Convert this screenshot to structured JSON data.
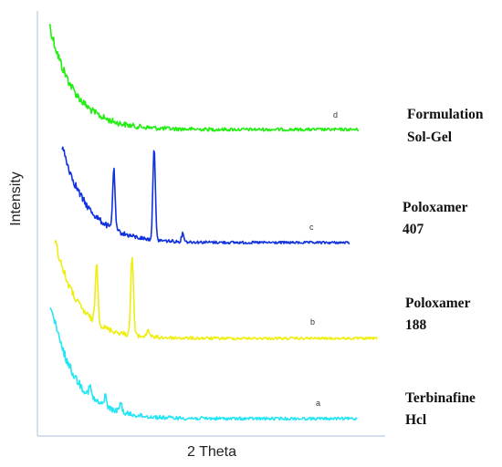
{
  "chart_data": {
    "type": "line",
    "title": "",
    "xlabel": "2 Theta",
    "ylabel": "Intensity",
    "grid": false,
    "axis_ticks": false,
    "series": [
      {
        "id": "d",
        "trace_label": "d",
        "legend_lines": [
          "Formulation",
          "Sol-Gel"
        ],
        "color": "#22ee11",
        "shape": "amorphous-halo",
        "peaks": []
      },
      {
        "id": "c",
        "trace_label": "c",
        "legend_lines": [
          "Poloxamer",
          "407"
        ],
        "color": "#1133dd",
        "shape": "crystalline",
        "peaks": [
          {
            "position": 0.18,
            "height": 1.0
          },
          {
            "position": 0.32,
            "height": 1.55
          },
          {
            "position": 0.42,
            "height": 0.14
          }
        ]
      },
      {
        "id": "b",
        "trace_label": "b",
        "legend_lines": [
          "Poloxamer",
          "188"
        ],
        "color": "#eeee11",
        "shape": "crystalline",
        "peaks": [
          {
            "position": 0.13,
            "height": 1.0
          },
          {
            "position": 0.24,
            "height": 1.35
          },
          {
            "position": 0.29,
            "height": 0.12
          }
        ]
      },
      {
        "id": "a",
        "trace_label": "a",
        "legend_lines": [
          "Terbinafine",
          "Hcl"
        ],
        "color": "#22e5f5",
        "shape": "semi-crystalline",
        "peaks": [
          {
            "position": 0.13,
            "height": 0.3
          },
          {
            "position": 0.18,
            "height": 0.35
          },
          {
            "position": 0.23,
            "height": 0.3
          }
        ]
      }
    ]
  }
}
